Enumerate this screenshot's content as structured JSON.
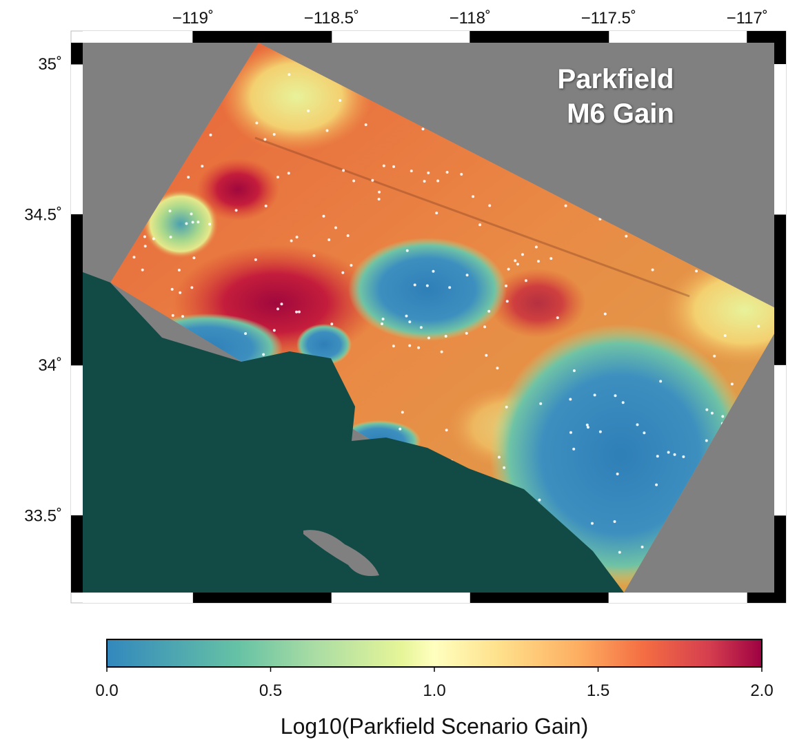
{
  "map": {
    "title": [
      "Parkfield",
      "M6 Gain"
    ],
    "xlim": [
      -119.44,
      -116.86
    ],
    "ylim": [
      33.21,
      35.11
    ],
    "xticks": [
      {
        "value": -119,
        "label": "−119˚"
      },
      {
        "value": -118.5,
        "label": "−118.5˚"
      },
      {
        "value": -118,
        "label": "−118˚"
      },
      {
        "value": -117.5,
        "label": "−117.5˚"
      },
      {
        "value": -117,
        "label": "−117˚"
      }
    ],
    "yticks": [
      {
        "value": 35,
        "label": "35˚"
      },
      {
        "value": 34.5,
        "label": "34.5˚"
      },
      {
        "value": 34,
        "label": "34˚"
      },
      {
        "value": 33.5,
        "label": "33.5˚"
      }
    ]
  },
  "colorbar": {
    "label": "Log10(Parkfield Scenario Gain)",
    "lim": [
      0,
      2
    ],
    "ticks": [
      {
        "value": 0,
        "label": "0.0"
      },
      {
        "value": 0.5,
        "label": "0.5"
      },
      {
        "value": 1,
        "label": "1.0"
      },
      {
        "value": 1.5,
        "label": "1.5"
      },
      {
        "value": 2,
        "label": "2.0"
      }
    ]
  }
}
